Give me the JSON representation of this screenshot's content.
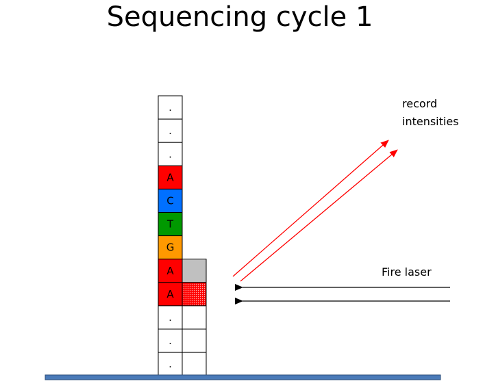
{
  "title": "Sequencing cycle 1",
  "template_strand": [
    {
      "base": ".",
      "color": "#ffffff"
    },
    {
      "base": ".",
      "color": "#ffffff"
    },
    {
      "base": ".",
      "color": "#ffffff"
    },
    {
      "base": "A",
      "color": "#ff0000"
    },
    {
      "base": "C",
      "color": "#0070ff"
    },
    {
      "base": "T",
      "color": "#009900"
    },
    {
      "base": "G",
      "color": "#ff9900"
    },
    {
      "base": "A",
      "color": "#ff0000"
    },
    {
      "base": "A",
      "color": "#ff0000"
    },
    {
      "base": ".",
      "color": "#ffffff"
    },
    {
      "base": ".",
      "color": "#ffffff"
    },
    {
      "base": ".",
      "color": "#ffffff"
    }
  ],
  "complement_strand": {
    "terminator_color": "#c0c0c0",
    "incorporated_color": "#ff0000"
  },
  "labels": {
    "record_line1": "record",
    "record_line2": "intensities",
    "fire_laser": "Fire laser"
  },
  "colors": {
    "emission_arrow": "#ff0000",
    "laser_arrow": "#000000",
    "flow_cell": "#4a7ab8"
  }
}
